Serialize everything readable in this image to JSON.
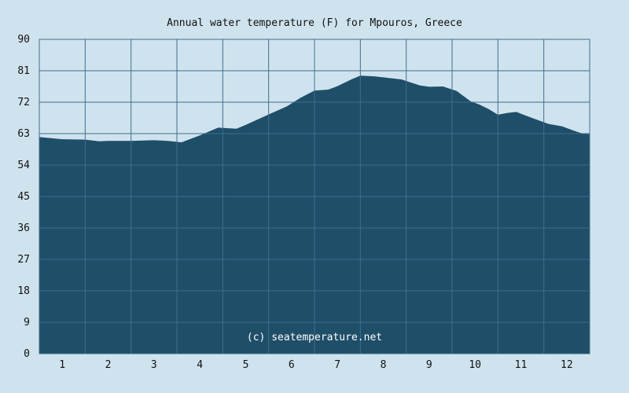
{
  "chart_data": {
    "type": "area",
    "title": "Annual water temperature (F) for Mpouros, Greece",
    "credit": "(c) seatemperature.net",
    "xlabel": "",
    "ylabel": "",
    "x_ticks": [
      "1",
      "2",
      "3",
      "4",
      "5",
      "6",
      "7",
      "8",
      "9",
      "10",
      "11",
      "12"
    ],
    "xlim": [
      0.5,
      12.5
    ],
    "ylim": [
      0,
      90
    ],
    "y_ticks": [
      "0",
      "9",
      "18",
      "27",
      "36",
      "45",
      "54",
      "63",
      "72",
      "81",
      "90"
    ],
    "grid": true,
    "colors": {
      "fill": "#1f4e69",
      "background": "#cfe3ee",
      "grid": "#3f6f8c",
      "plot_border": "#3f6f8c"
    },
    "series": [
      {
        "x": [
          0.5,
          1.0,
          1.5,
          1.8,
          2.0,
          2.5,
          3.0,
          3.3,
          3.6,
          4.0,
          4.4,
          4.8,
          5.0,
          5.5,
          5.9,
          6.2,
          6.5,
          6.8,
          7.0,
          7.3,
          7.5,
          7.8,
          8.0,
          8.4,
          8.8,
          9.0,
          9.3,
          9.6,
          9.9,
          10.1,
          10.3,
          10.5,
          10.7,
          10.9,
          11.1,
          11.3,
          11.6,
          11.9,
          12.1,
          12.3,
          12.5
        ],
        "values": [
          62.0,
          61.4,
          61.3,
          60.8,
          60.9,
          60.9,
          61.1,
          60.9,
          60.5,
          62.5,
          64.7,
          64.4,
          65.5,
          68.5,
          70.8,
          73.3,
          75.3,
          75.6,
          76.6,
          78.5,
          79.6,
          79.4,
          79.1,
          78.5,
          76.8,
          76.4,
          76.5,
          75.2,
          72.3,
          71.3,
          70.0,
          68.4,
          68.9,
          69.2,
          68.2,
          67.2,
          65.8,
          65.1,
          64.1,
          63.2,
          62.8
        ]
      }
    ]
  }
}
